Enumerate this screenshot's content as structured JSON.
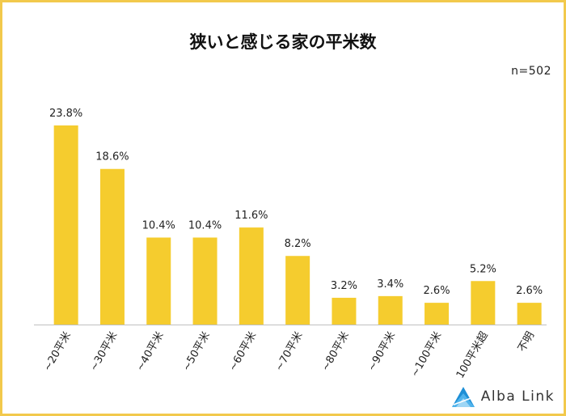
{
  "chart_data": {
    "type": "bar",
    "title": "狭いと感じる家の平米数",
    "sample_size": "n=502",
    "categories": [
      "~20平米",
      "~30平米",
      "~40平米",
      "~50平米",
      "~60平米",
      "~70平米",
      "~80平米",
      "~90平米",
      "~100平米",
      "100平米超",
      "不明"
    ],
    "values": [
      23.8,
      18.6,
      10.4,
      10.4,
      11.6,
      8.2,
      3.2,
      3.4,
      2.6,
      5.2,
      2.6
    ],
    "value_labels": [
      "23.8%",
      "18.6%",
      "10.4%",
      "10.4%",
      "11.6%",
      "8.2%",
      "3.2%",
      "3.4%",
      "2.6%",
      "5.2%",
      "2.6%"
    ],
    "unit": "%",
    "ylim": [
      0,
      25
    ],
    "xlabel": "",
    "ylabel": "",
    "bar_color": "#f5cc2e",
    "grid": false
  },
  "brand": {
    "name": "Alba Link",
    "accent_color": "#1d8fd6"
  },
  "frame_color": "#f2c94c"
}
